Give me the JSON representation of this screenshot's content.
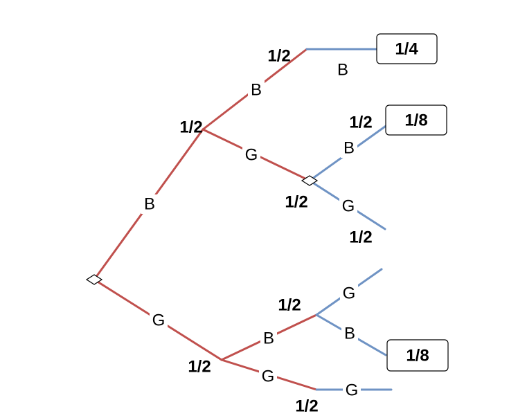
{
  "colors": {
    "upper_branch": "#c0504d",
    "lower_branch": "#6f93c4"
  },
  "branch_labels": {
    "root_b": "B",
    "root_g": "G",
    "b_b": "B",
    "b_g": "G",
    "bb_b": "B",
    "bg_b": "B",
    "bg_g": "G",
    "g_b": "B",
    "g_g": "G",
    "gb_g": "G",
    "gb_b": "B",
    "gg_g": "G"
  },
  "probabilities": {
    "b_node": "1/2",
    "bb_top": "1/2",
    "bg_node": "1/2",
    "bg_b": "1/2",
    "bg_g": "1/2",
    "gb_node": "1/2",
    "g_node": "1/2",
    "gg": "1/2"
  },
  "outcomes": {
    "bb": "1/4",
    "bgb": "1/8",
    "gbb": "1/8"
  }
}
